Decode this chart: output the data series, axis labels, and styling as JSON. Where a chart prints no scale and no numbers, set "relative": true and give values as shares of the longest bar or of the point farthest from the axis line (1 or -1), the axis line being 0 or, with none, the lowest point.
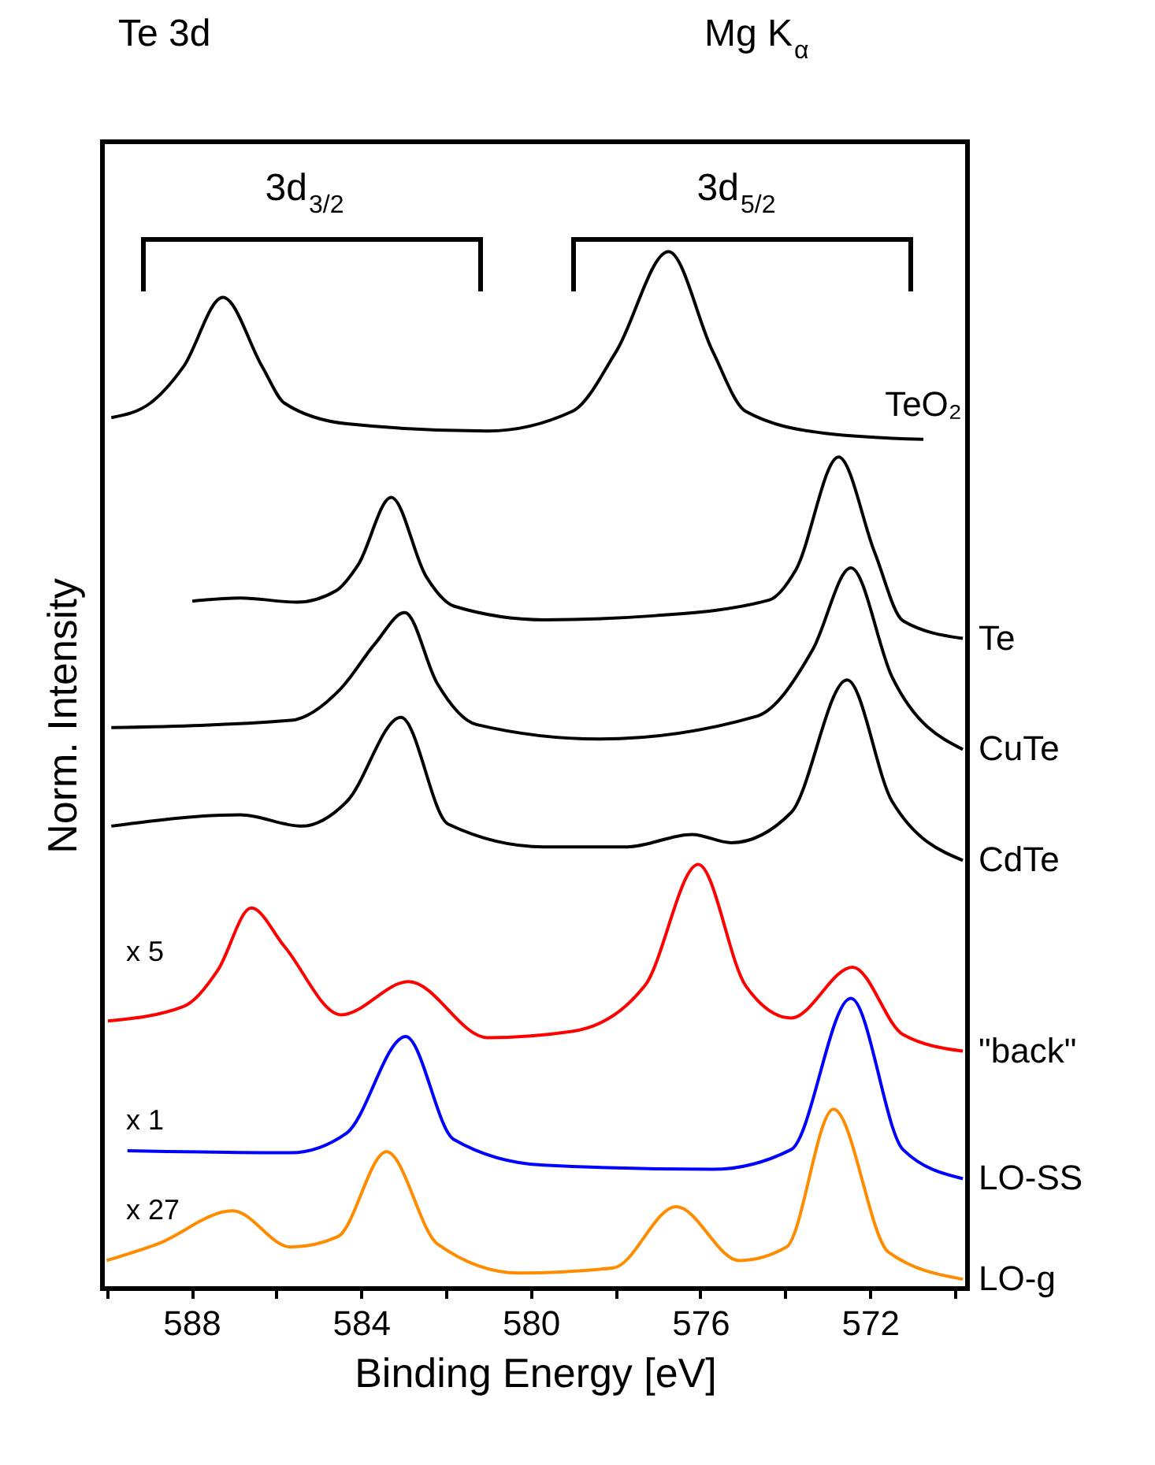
{
  "chart_data": {
    "type": "line",
    "relative": true,
    "title": "Te 3d",
    "xlabel": "Binding Energy [eV]",
    "ylabel": "Norm. Intensity",
    "legend": false,
    "grid": false,
    "xlim": [
      590.1,
      569.7
    ],
    "xticks": [
      {
        "value": 590,
        "label": null
      },
      588,
      {
        "value": 586,
        "label": null
      },
      584,
      {
        "value": 582,
        "label": null
      },
      580,
      {
        "value": 578,
        "label": null
      },
      576,
      {
        "value": 574,
        "label": null
      },
      572,
      {
        "value": 570,
        "label": null
      }
    ],
    "annotations": [
      "Mg K$_{α}$",
      "3d$_{3/2}$",
      "3d$_{5/2}$",
      "x 5",
      "x 1",
      "x 27"
    ],
    "series": [
      {
        "name": "TeO₂",
        "color": "#000000",
        "x": [
          589.89,
          588.97,
          588.19,
          587.26,
          586.33,
          585.81,
          584.33,
          581.02,
          579.02,
          577.98,
          576.75,
          575.71,
          574.93,
          573.08,
          570.74
        ],
        "values": [
          0.84,
          0.854,
          0.889,
          0.956,
          0.889,
          0.854,
          0.834,
          0.827,
          0.846,
          0.904,
          1.0,
          0.904,
          0.846,
          0.825,
          0.819
        ]
      },
      {
        "name": "Te",
        "color": "#000000",
        "x": [
          587.98,
          586.85,
          585.51,
          584.59,
          584.07,
          583.29,
          582.47,
          581.8,
          579.69,
          577.05,
          574.38,
          573.75,
          572.74,
          571.89,
          571.22,
          569.81
        ],
        "values": [
          0.663,
          0.666,
          0.662,
          0.673,
          0.698,
          0.763,
          0.687,
          0.658,
          0.645,
          0.649,
          0.664,
          0.693,
          0.802,
          0.71,
          0.644,
          0.627
        ]
      },
      {
        "name": "CuTe",
        "color": "#000000",
        "x": [
          589.89,
          585.66,
          584.47,
          583.67,
          582.97,
          582.21,
          581.28,
          578.39,
          574.67,
          573.34,
          572.45,
          571.48,
          569.81
        ],
        "values": [
          0.541,
          0.548,
          0.579,
          0.622,
          0.652,
          0.584,
          0.544,
          0.53,
          0.552,
          0.617,
          0.695,
          0.59,
          0.52
        ]
      },
      {
        "name": "CdTe",
        "color": "#000000",
        "x": [
          589.89,
          586.85,
          585.4,
          584.33,
          583.06,
          581.95,
          579.69,
          577.72,
          576.2,
          575.27,
          573.86,
          572.54,
          571.48,
          569.81
        ],
        "values": [
          0.446,
          0.457,
          0.446,
          0.47,
          0.551,
          0.448,
          0.426,
          0.426,
          0.438,
          0.43,
          0.459,
          0.587,
          0.47,
          0.413
        ]
      },
      {
        "name": "\"back\"",
        "color": "#ff0000",
        "x": [
          589.97,
          588.19,
          587.38,
          586.59,
          585.81,
          584.47,
          582.88,
          581.02,
          579.03,
          577.31,
          576.05,
          574.93,
          573.86,
          572.41,
          571.22,
          569.81
        ],
        "values": [
          0.258,
          0.272,
          0.307,
          0.367,
          0.33,
          0.264,
          0.296,
          0.242,
          0.248,
          0.292,
          0.409,
          0.292,
          0.261,
          0.31,
          0.245,
          0.229
        ]
      },
      {
        "name": "LO-SS",
        "color": "#0000ff",
        "x": [
          589.51,
          585.66,
          584.34,
          582.95,
          581.82,
          579.7,
          575.71,
          573.86,
          572.45,
          571.22,
          569.81
        ],
        "values": [
          0.133,
          0.131,
          0.15,
          0.243,
          0.144,
          0.119,
          0.115,
          0.134,
          0.28,
          0.134,
          0.106
        ]
      },
      {
        "name": "LO-g",
        "color": "#ff8c00",
        "x": [
          590.0,
          588.8,
          587.03,
          585.66,
          584.55,
          583.4,
          582.2,
          580.28,
          578.05,
          576.57,
          575.08,
          573.97,
          572.86,
          571.56,
          569.81
        ],
        "values": [
          0.027,
          0.043,
          0.075,
          0.04,
          0.05,
          0.132,
          0.043,
          0.015,
          0.02,
          0.079,
          0.027,
          0.04,
          0.173,
          0.035,
          0.009
        ]
      }
    ]
  }
}
